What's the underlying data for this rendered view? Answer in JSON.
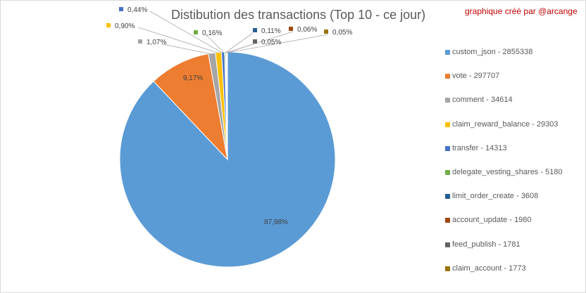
{
  "chart": {
    "title": "Distibution des transactions  (Top 10 - ce jour)",
    "credit": "graphique créé par @arcange"
  },
  "chart_data": {
    "type": "pie",
    "title": "Distibution des transactions  (Top 10 - ce jour)",
    "legend_position": "right",
    "slices": [
      {
        "label": "custom_json - 2855338",
        "name": "custom_json",
        "value": 2855338,
        "percent_label": "87,98%",
        "color": "#5b9bd5"
      },
      {
        "label": "vote - 297707",
        "name": "vote",
        "value": 297707,
        "percent_label": "9,17%",
        "color": "#ed7d31"
      },
      {
        "label": "comment - 34614",
        "name": "comment",
        "value": 34614,
        "percent_label": "1,07%",
        "color": "#a5a5a5"
      },
      {
        "label": "claim_reward_balance - 29303",
        "name": "claim_reward_balance",
        "value": 29303,
        "percent_label": "0,90%",
        "color": "#ffc000"
      },
      {
        "label": "transfer - 14313",
        "name": "transfer",
        "value": 14313,
        "percent_label": "0,44%",
        "color": "#4472c4"
      },
      {
        "label": "delegate_vesting_shares - 5180",
        "name": "delegate_vesting_shares",
        "value": 5180,
        "percent_label": "0,16%",
        "color": "#70ad47"
      },
      {
        "label": "limit_order_create - 3608",
        "name": "limit_order_create",
        "value": 3608,
        "percent_label": "0,11%",
        "color": "#255e91"
      },
      {
        "label": "account_update - 1980",
        "name": "account_update",
        "value": 1980,
        "percent_label": "0,06%",
        "color": "#9e480e"
      },
      {
        "label": "feed_publish - 1781",
        "name": "feed_publish",
        "value": 1781,
        "percent_label": "0,05%",
        "color": "#636363"
      },
      {
        "label": "claim_account - 1773",
        "name": "claim_account",
        "value": 1773,
        "percent_label": "0,05%",
        "color": "#997300"
      }
    ]
  }
}
